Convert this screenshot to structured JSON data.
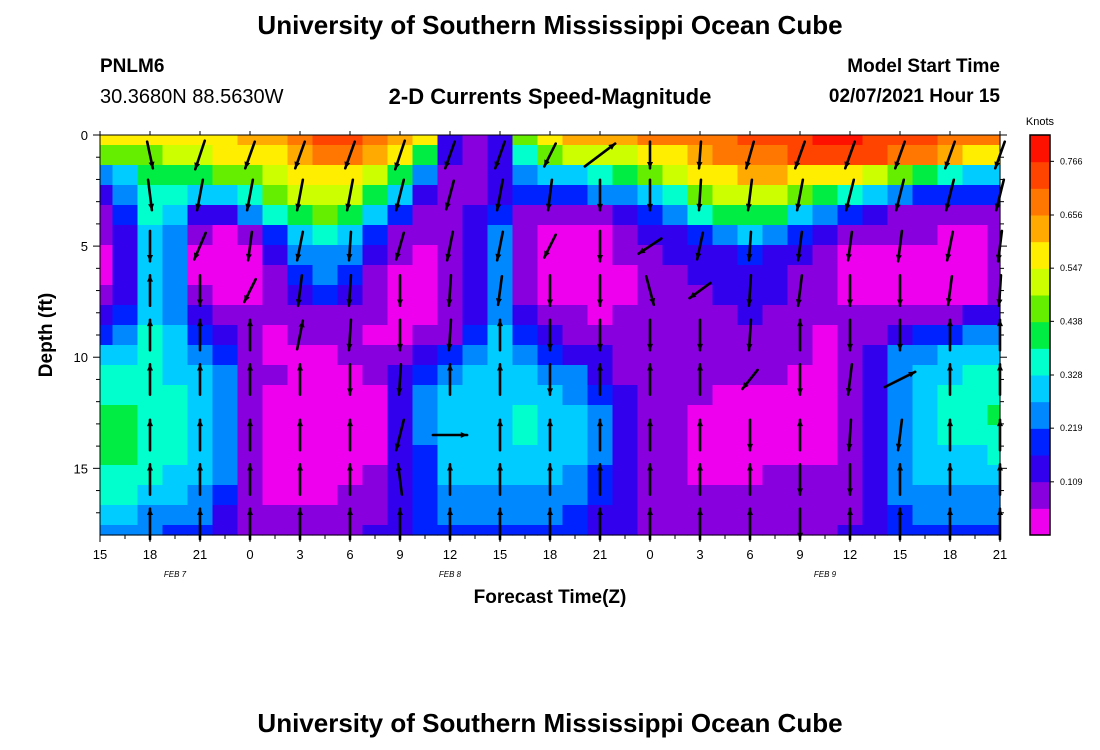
{
  "header": {
    "title": "University of Southern Mississippi Ocean Cube",
    "station": "PNLM6",
    "coords": "30.3680N 88.5630W",
    "product": "2-D Currents Speed-Magnitude",
    "model_start_label": "Model Start Time",
    "model_start_value": "02/07/2021 Hour 15"
  },
  "footer": {
    "title": "University of Southern Mississippi Ocean Cube"
  },
  "chart_data": {
    "type": "heatmap",
    "title": "2-D Currents Speed-Magnitude",
    "xlabel": "Forecast Time(Z)",
    "ylabel": "Depth (ft)",
    "x_tick_labels": [
      "15",
      "18",
      "21",
      "0",
      "3",
      "6",
      "9",
      "12",
      "15",
      "18",
      "21",
      "0",
      "3",
      "6",
      "9",
      "12",
      "15",
      "18",
      "21"
    ],
    "x_range_hours": [
      0,
      54
    ],
    "date_labels": [
      {
        "text": "FEB 7",
        "hour": 4.5
      },
      {
        "text": "FEB 8",
        "hour": 21
      },
      {
        "text": "FEB 9",
        "hour": 43.5
      }
    ],
    "y_ticks": [
      0,
      5,
      10,
      15
    ],
    "ylim": [
      0,
      18
    ],
    "y_inverted": true,
    "colorbar": {
      "unit": "Knots",
      "ticks": [
        0.109,
        0.219,
        0.328,
        0.438,
        0.547,
        0.656,
        0.766
      ],
      "range": [
        0,
        0.82
      ],
      "colors": [
        "#ee00ee",
        "#8800dd",
        "#3300ee",
        "#0022ff",
        "#0088ff",
        "#00ccff",
        "#00ffcc",
        "#00ee44",
        "#66ee00",
        "#ccff00",
        "#ffee00",
        "#ffaa00",
        "#ff7700",
        "#ff4400",
        "#ff1100"
      ]
    },
    "time_hours": [
      0,
      1.5,
      3,
      4.5,
      6,
      7.5,
      9,
      10.5,
      12,
      13.5,
      15,
      16.5,
      18,
      19.5,
      21,
      22.5,
      24,
      25.5,
      27,
      28.5,
      30,
      31.5,
      33,
      34.5,
      36,
      37.5,
      39,
      40.5,
      42,
      43.5,
      45,
      46.5,
      48,
      49.5,
      51,
      52.5,
      54
    ],
    "depth_ft": [
      0,
      0.9,
      1.8,
      2.7,
      3.6,
      4.5,
      5.4,
      6.3,
      7.2,
      8.1,
      9,
      9.9,
      10.8,
      11.7,
      12.6,
      13.5,
      14.4,
      15.3,
      16.2,
      17.1,
      18
    ],
    "speed_knots": [
      [
        0.56,
        0.57,
        0.58,
        0.58,
        0.59,
        0.6,
        0.62,
        0.65,
        0.7,
        0.72,
        0.72,
        0.68,
        0.64,
        0.55,
        0.15,
        0.08,
        0.12,
        0.45,
        0.58,
        0.62,
        0.64,
        0.65,
        0.66,
        0.67,
        0.68,
        0.7,
        0.72,
        0.74,
        0.76,
        0.77,
        0.77,
        0.76,
        0.74,
        0.72,
        0.7,
        0.68,
        0.66
      ],
      [
        0.44,
        0.44,
        0.48,
        0.5,
        0.52,
        0.55,
        0.58,
        0.6,
        0.64,
        0.66,
        0.66,
        0.62,
        0.55,
        0.4,
        0.12,
        0.06,
        0.14,
        0.35,
        0.45,
        0.5,
        0.52,
        0.54,
        0.56,
        0.58,
        0.62,
        0.66,
        0.68,
        0.7,
        0.72,
        0.74,
        0.74,
        0.72,
        0.7,
        0.66,
        0.62,
        0.58,
        0.55
      ],
      [
        0.22,
        0.3,
        0.4,
        0.42,
        0.42,
        0.45,
        0.48,
        0.52,
        0.55,
        0.58,
        0.56,
        0.5,
        0.4,
        0.25,
        0.1,
        0.07,
        0.12,
        0.25,
        0.3,
        0.32,
        0.35,
        0.4,
        0.45,
        0.5,
        0.55,
        0.6,
        0.62,
        0.62,
        0.6,
        0.58,
        0.55,
        0.52,
        0.45,
        0.4,
        0.35,
        0.3,
        0.28
      ],
      [
        0.14,
        0.25,
        0.38,
        0.36,
        0.28,
        0.3,
        0.38,
        0.45,
        0.5,
        0.52,
        0.5,
        0.42,
        0.3,
        0.16,
        0.1,
        0.1,
        0.15,
        0.18,
        0.2,
        0.2,
        0.22,
        0.25,
        0.3,
        0.38,
        0.45,
        0.5,
        0.52,
        0.52,
        0.48,
        0.42,
        0.35,
        0.28,
        0.22,
        0.2,
        0.18,
        0.18,
        0.2
      ],
      [
        0.08,
        0.18,
        0.34,
        0.3,
        0.16,
        0.14,
        0.22,
        0.35,
        0.42,
        0.45,
        0.4,
        0.3,
        0.18,
        0.1,
        0.1,
        0.12,
        0.2,
        0.08,
        0.07,
        0.08,
        0.1,
        0.12,
        0.18,
        0.25,
        0.35,
        0.4,
        0.42,
        0.4,
        0.32,
        0.25,
        0.18,
        0.12,
        0.1,
        0.08,
        0.08,
        0.08,
        0.1
      ],
      [
        0.06,
        0.16,
        0.32,
        0.26,
        0.08,
        0.05,
        0.08,
        0.2,
        0.32,
        0.36,
        0.3,
        0.2,
        0.1,
        0.06,
        0.08,
        0.12,
        0.22,
        0.06,
        0.04,
        0.04,
        0.05,
        0.08,
        0.12,
        0.15,
        0.2,
        0.25,
        0.28,
        0.26,
        0.2,
        0.14,
        0.08,
        0.06,
        0.06,
        0.06,
        0.05,
        0.05,
        0.08
      ],
      [
        0.05,
        0.15,
        0.32,
        0.24,
        0.05,
        0.02,
        0.03,
        0.12,
        0.22,
        0.26,
        0.22,
        0.12,
        0.06,
        0.05,
        0.07,
        0.13,
        0.24,
        0.06,
        0.03,
        0.02,
        0.03,
        0.06,
        0.1,
        0.12,
        0.14,
        0.16,
        0.18,
        0.16,
        0.12,
        0.08,
        0.05,
        0.04,
        0.03,
        0.04,
        0.03,
        0.05,
        0.06
      ],
      [
        0.04,
        0.15,
        0.32,
        0.22,
        0.05,
        0.02,
        0.03,
        0.08,
        0.18,
        0.22,
        0.18,
        0.1,
        0.05,
        0.04,
        0.06,
        0.14,
        0.25,
        0.07,
        0.02,
        0.02,
        0.03,
        0.05,
        0.08,
        0.1,
        0.12,
        0.14,
        0.15,
        0.14,
        0.1,
        0.07,
        0.04,
        0.03,
        0.02,
        0.02,
        0.02,
        0.04,
        0.06
      ],
      [
        0.06,
        0.15,
        0.32,
        0.22,
        0.06,
        0.04,
        0.05,
        0.08,
        0.14,
        0.18,
        0.14,
        0.08,
        0.05,
        0.05,
        0.06,
        0.15,
        0.26,
        0.08,
        0.04,
        0.03,
        0.04,
        0.05,
        0.07,
        0.09,
        0.1,
        0.12,
        0.14,
        0.12,
        0.09,
        0.06,
        0.04,
        0.04,
        0.04,
        0.05,
        0.04,
        0.05,
        0.07
      ],
      [
        0.12,
        0.17,
        0.32,
        0.24,
        0.12,
        0.08,
        0.06,
        0.06,
        0.08,
        0.1,
        0.08,
        0.06,
        0.05,
        0.05,
        0.07,
        0.16,
        0.27,
        0.12,
        0.08,
        0.06,
        0.05,
        0.06,
        0.07,
        0.09,
        0.1,
        0.1,
        0.12,
        0.1,
        0.07,
        0.06,
        0.06,
        0.08,
        0.1,
        0.1,
        0.1,
        0.12,
        0.14
      ],
      [
        0.2,
        0.22,
        0.33,
        0.28,
        0.2,
        0.12,
        0.06,
        0.05,
        0.06,
        0.07,
        0.06,
        0.05,
        0.05,
        0.06,
        0.1,
        0.18,
        0.28,
        0.18,
        0.14,
        0.1,
        0.08,
        0.06,
        0.06,
        0.08,
        0.09,
        0.09,
        0.1,
        0.09,
        0.06,
        0.05,
        0.06,
        0.1,
        0.16,
        0.2,
        0.2,
        0.22,
        0.24
      ],
      [
        0.28,
        0.28,
        0.34,
        0.3,
        0.26,
        0.18,
        0.06,
        0.05,
        0.05,
        0.05,
        0.06,
        0.07,
        0.1,
        0.14,
        0.18,
        0.22,
        0.28,
        0.22,
        0.2,
        0.16,
        0.12,
        0.08,
        0.06,
        0.07,
        0.08,
        0.08,
        0.09,
        0.08,
        0.06,
        0.05,
        0.06,
        0.12,
        0.22,
        0.26,
        0.28,
        0.3,
        0.3
      ],
      [
        0.34,
        0.34,
        0.36,
        0.32,
        0.3,
        0.24,
        0.08,
        0.06,
        0.05,
        0.04,
        0.04,
        0.06,
        0.12,
        0.2,
        0.26,
        0.28,
        0.3,
        0.28,
        0.26,
        0.22,
        0.16,
        0.1,
        0.07,
        0.07,
        0.07,
        0.06,
        0.06,
        0.06,
        0.05,
        0.04,
        0.06,
        0.12,
        0.24,
        0.3,
        0.32,
        0.34,
        0.34
      ],
      [
        0.38,
        0.38,
        0.37,
        0.34,
        0.32,
        0.26,
        0.08,
        0.05,
        0.03,
        0.02,
        0.03,
        0.05,
        0.12,
        0.22,
        0.3,
        0.3,
        0.31,
        0.32,
        0.3,
        0.26,
        0.2,
        0.12,
        0.08,
        0.07,
        0.06,
        0.05,
        0.05,
        0.05,
        0.04,
        0.03,
        0.06,
        0.12,
        0.26,
        0.32,
        0.34,
        0.36,
        0.38
      ],
      [
        0.4,
        0.4,
        0.38,
        0.35,
        0.32,
        0.26,
        0.08,
        0.04,
        0.02,
        0.02,
        0.02,
        0.05,
        0.12,
        0.22,
        0.3,
        0.31,
        0.32,
        0.33,
        0.31,
        0.28,
        0.22,
        0.14,
        0.08,
        0.06,
        0.05,
        0.04,
        0.04,
        0.04,
        0.03,
        0.02,
        0.06,
        0.12,
        0.26,
        0.32,
        0.34,
        0.38,
        0.4
      ],
      [
        0.4,
        0.4,
        0.38,
        0.35,
        0.32,
        0.26,
        0.08,
        0.04,
        0.01,
        0.02,
        0.02,
        0.05,
        0.12,
        0.22,
        0.3,
        0.31,
        0.32,
        0.33,
        0.31,
        0.28,
        0.22,
        0.14,
        0.08,
        0.06,
        0.05,
        0.04,
        0.04,
        0.04,
        0.04,
        0.04,
        0.06,
        0.12,
        0.26,
        0.32,
        0.33,
        0.36,
        0.38
      ],
      [
        0.4,
        0.4,
        0.37,
        0.34,
        0.3,
        0.24,
        0.08,
        0.04,
        0.01,
        0.02,
        0.03,
        0.05,
        0.12,
        0.2,
        0.3,
        0.3,
        0.3,
        0.31,
        0.3,
        0.28,
        0.22,
        0.14,
        0.08,
        0.06,
        0.05,
        0.04,
        0.04,
        0.05,
        0.05,
        0.05,
        0.06,
        0.12,
        0.24,
        0.3,
        0.3,
        0.32,
        0.34
      ],
      [
        0.38,
        0.38,
        0.35,
        0.32,
        0.28,
        0.22,
        0.08,
        0.04,
        0.03,
        0.03,
        0.04,
        0.06,
        0.12,
        0.2,
        0.28,
        0.28,
        0.28,
        0.28,
        0.28,
        0.26,
        0.2,
        0.14,
        0.08,
        0.06,
        0.05,
        0.05,
        0.05,
        0.06,
        0.06,
        0.06,
        0.07,
        0.12,
        0.22,
        0.28,
        0.28,
        0.28,
        0.3
      ],
      [
        0.36,
        0.34,
        0.32,
        0.3,
        0.26,
        0.2,
        0.08,
        0.05,
        0.05,
        0.05,
        0.06,
        0.08,
        0.14,
        0.2,
        0.26,
        0.26,
        0.26,
        0.26,
        0.26,
        0.24,
        0.18,
        0.12,
        0.08,
        0.07,
        0.06,
        0.06,
        0.06,
        0.07,
        0.07,
        0.07,
        0.08,
        0.14,
        0.22,
        0.26,
        0.26,
        0.26,
        0.26
      ],
      [
        0.3,
        0.28,
        0.26,
        0.24,
        0.22,
        0.16,
        0.08,
        0.06,
        0.07,
        0.07,
        0.08,
        0.1,
        0.14,
        0.18,
        0.22,
        0.22,
        0.22,
        0.22,
        0.22,
        0.2,
        0.16,
        0.12,
        0.09,
        0.08,
        0.08,
        0.08,
        0.08,
        0.08,
        0.08,
        0.09,
        0.1,
        0.14,
        0.2,
        0.22,
        0.22,
        0.22,
        0.22
      ],
      [
        0.26,
        0.24,
        0.22,
        0.2,
        0.18,
        0.14,
        0.08,
        0.07,
        0.08,
        0.08,
        0.09,
        0.11,
        0.14,
        0.17,
        0.2,
        0.2,
        0.2,
        0.2,
        0.2,
        0.18,
        0.15,
        0.12,
        0.1,
        0.09,
        0.09,
        0.09,
        0.09,
        0.09,
        0.09,
        0.1,
        0.11,
        0.14,
        0.18,
        0.2,
        0.2,
        0.2,
        0.2
      ]
    ],
    "vectors": {
      "time_hours": [
        3,
        6,
        9,
        12,
        15,
        18,
        21,
        24,
        27,
        30,
        33,
        36,
        39,
        42,
        45,
        48,
        51,
        54
      ],
      "depth_ft": [
        0.9,
        2.7,
        5,
        7,
        9,
        11,
        13.5,
        15.5,
        17.5
      ],
      "u": [
        [
          0.15,
          -0.25,
          -0.25,
          -0.25,
          -0.25,
          -0.25,
          -0.25,
          -0.25,
          -0.3,
          0.8,
          0.0,
          -0.05,
          -0.2,
          -0.25,
          -0.25,
          -0.25,
          -0.25,
          -0.25
        ],
        [
          0.1,
          -0.15,
          -0.15,
          -0.15,
          -0.15,
          -0.2,
          -0.2,
          -0.15,
          -0.1,
          0.0,
          0.0,
          -0.05,
          -0.1,
          -0.15,
          -0.2,
          -0.2,
          -0.2,
          -0.2
        ],
        [
          0.0,
          -0.3,
          -0.1,
          -0.15,
          -0.05,
          -0.2,
          -0.15,
          -0.15,
          -0.3,
          0.0,
          -0.6,
          -0.15,
          -0.05,
          -0.1,
          -0.1,
          -0.1,
          -0.15,
          -0.1
        ],
        [
          0.0,
          0.0,
          -0.3,
          -0.1,
          -0.05,
          0.0,
          -0.05,
          -0.1,
          0.0,
          0.0,
          0.2,
          -0.55,
          -0.05,
          -0.1,
          0.0,
          0.0,
          -0.1,
          -0.05
        ],
        [
          0.0,
          0.0,
          0.0,
          0.15,
          -0.05,
          0.0,
          -0.05,
          0.0,
          0.0,
          0.0,
          0.0,
          0.0,
          -0.05,
          0.0,
          0.0,
          0.0,
          0.0,
          0.0
        ],
        [
          0.0,
          0.0,
          0.0,
          0.0,
          0.0,
          -0.05,
          0.0,
          0.0,
          0.0,
          0.0,
          0.0,
          0.0,
          -0.4,
          0.0,
          -0.1,
          0.8,
          0.0,
          0.0
        ],
        [
          0.0,
          0.0,
          0.0,
          0.0,
          0.0,
          -0.2,
          0.9,
          0.0,
          0.0,
          0.0,
          0.0,
          0.0,
          0.0,
          0.0,
          -0.05,
          -0.1,
          0.0,
          0.0
        ],
        [
          0.0,
          0.0,
          0.0,
          0.0,
          0.0,
          -0.1,
          0.0,
          0.0,
          0.0,
          0.0,
          0.0,
          0.0,
          0.0,
          0.0,
          0.0,
          0.0,
          0.0,
          0.0
        ],
        [
          0.0,
          0.0,
          0.0,
          0.0,
          0.0,
          0.0,
          0.0,
          0.0,
          0.0,
          0.0,
          0.0,
          0.0,
          0.0,
          0.0,
          0.0,
          0.0,
          0.0,
          0.0
        ]
      ],
      "v": [
        [
          -0.7,
          -0.75,
          -0.7,
          -0.7,
          -0.7,
          -0.75,
          -0.7,
          -0.7,
          -0.6,
          0.6,
          -0.7,
          -0.7,
          -0.7,
          -0.7,
          -0.7,
          -0.7,
          -0.7,
          -0.7
        ],
        [
          -0.8,
          -0.8,
          -0.8,
          -0.8,
          -0.8,
          -0.8,
          -0.75,
          -0.8,
          -0.8,
          -0.8,
          -0.8,
          -0.8,
          -0.8,
          -0.8,
          -0.8,
          -0.8,
          -0.8,
          -0.8
        ],
        [
          -0.8,
          -0.7,
          -0.75,
          -0.75,
          -0.75,
          -0.7,
          -0.75,
          -0.75,
          -0.6,
          -0.8,
          -0.4,
          -0.7,
          -0.75,
          -0.75,
          -0.75,
          -0.8,
          -0.75,
          -0.8
        ],
        [
          0.8,
          -0.8,
          -0.6,
          -0.8,
          -0.8,
          -0.8,
          -0.8,
          -0.75,
          -0.8,
          -0.8,
          -0.75,
          -0.4,
          -0.8,
          -0.8,
          -0.8,
          -0.8,
          -0.75,
          -0.8
        ],
        [
          0.8,
          0.8,
          0.8,
          0.75,
          -0.8,
          -0.8,
          -0.8,
          0.8,
          -0.8,
          -0.8,
          -0.8,
          -0.8,
          -0.8,
          0.8,
          -0.8,
          -0.8,
          0.8,
          0.8
        ],
        [
          0.8,
          0.8,
          0.8,
          0.8,
          -0.8,
          -0.8,
          0.8,
          0.8,
          -0.8,
          0.8,
          0.8,
          0.8,
          -0.5,
          -0.8,
          -0.8,
          0.4,
          0.8,
          0.8
        ],
        [
          0.8,
          0.8,
          0.8,
          0.8,
          0.8,
          -0.8,
          0.0,
          0.8,
          0.8,
          0.8,
          0.8,
          0.8,
          -0.8,
          0.8,
          -0.8,
          -0.8,
          0.8,
          0.8
        ],
        [
          0.8,
          0.8,
          0.8,
          0.8,
          0.8,
          0.8,
          0.8,
          0.8,
          0.8,
          0.8,
          0.8,
          0.8,
          0.8,
          -0.8,
          -0.8,
          0.8,
          0.8,
          0.8
        ],
        [
          0.8,
          0.8,
          0.8,
          0.8,
          0.8,
          0.8,
          0.8,
          0.8,
          0.8,
          0.8,
          0.8,
          0.8,
          0.8,
          -0.8,
          0.8,
          0.8,
          0.8,
          0.8
        ]
      ]
    }
  }
}
